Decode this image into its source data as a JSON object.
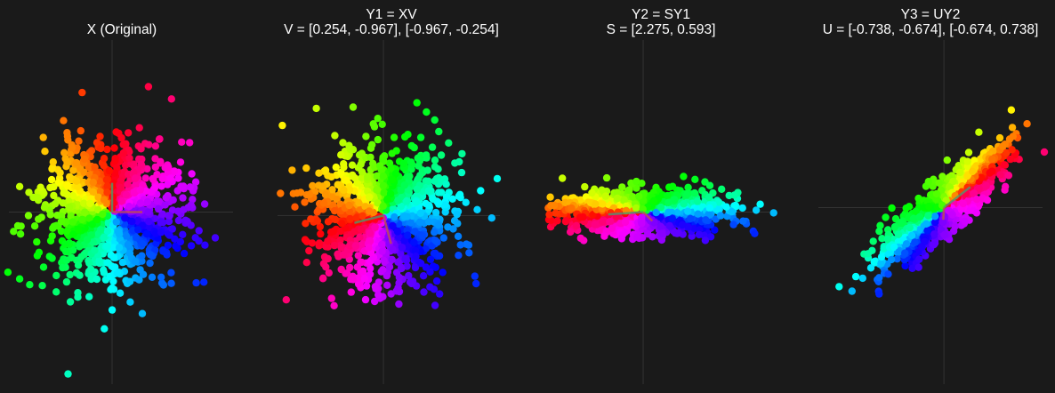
{
  "chart_data": [
    {
      "type": "scatter",
      "title": "X (Original)",
      "subtitle": "",
      "xlim": [
        -2.9,
        3.4
      ],
      "ylim": [
        -5.0,
        5.0
      ],
      "grid": false,
      "axis_lines": true,
      "basis_vectors": [
        [
          0.85,
          0.0
        ],
        [
          0.0,
          0.85
        ]
      ],
      "n_points": 1000,
      "color_map": "hue by angle of original point",
      "sample_points": [
        [
          1.0,
          0.3
        ],
        [
          -1.0,
          0.9
        ],
        [
          0.5,
          -1.2
        ],
        [
          -0.7,
          -0.8
        ],
        [
          2.9,
          -0.75
        ],
        [
          0.85,
          -2.95
        ]
      ]
    },
    {
      "type": "scatter",
      "title": "Y1 = XV",
      "subtitle": "V = [0.254, -0.967], [-0.967, -0.254]",
      "matrix": [
        [
          0.254,
          -0.967
        ],
        [
          -0.967,
          -0.254
        ]
      ],
      "xlim": [
        -3.0,
        3.3
      ],
      "ylim": [
        -4.9,
        5.1
      ],
      "grid": false,
      "axis_lines": true,
      "n_points": 1000,
      "color_map": "hue by angle of original point"
    },
    {
      "type": "scatter",
      "title": "Y2 = SY1",
      "subtitle": "S = [2.275, 0.593]",
      "matrix": [
        [
          2.275,
          0.0
        ],
        [
          0.0,
          0.593
        ]
      ],
      "xlim": [
        -5.0,
        6.9
      ],
      "ylim": [
        -9.4,
        9.4
      ],
      "grid": false,
      "axis_lines": true,
      "n_points": 1000,
      "color_map": "hue by angle of original point"
    },
    {
      "type": "scatter",
      "title": "Y3 = UY2",
      "subtitle": "U = [-0.738, -0.674], [-0.674, 0.738]",
      "matrix": [
        [
          -0.738,
          -0.674
        ],
        [
          -0.674,
          0.738
        ]
      ],
      "xlim": [
        -7.0,
        5.5
      ],
      "ylim": [
        -10.0,
        9.5
      ],
      "grid": false,
      "axis_lines": true,
      "n_points": 1000,
      "color_map": "hue by angle of original point"
    }
  ],
  "colors": {
    "background": "#1a1a1a",
    "axis_line": "#333333",
    "text": "#ffffff",
    "basis_vector_1": "#c0504d",
    "basis_vector_2": "#4f9a6a"
  }
}
